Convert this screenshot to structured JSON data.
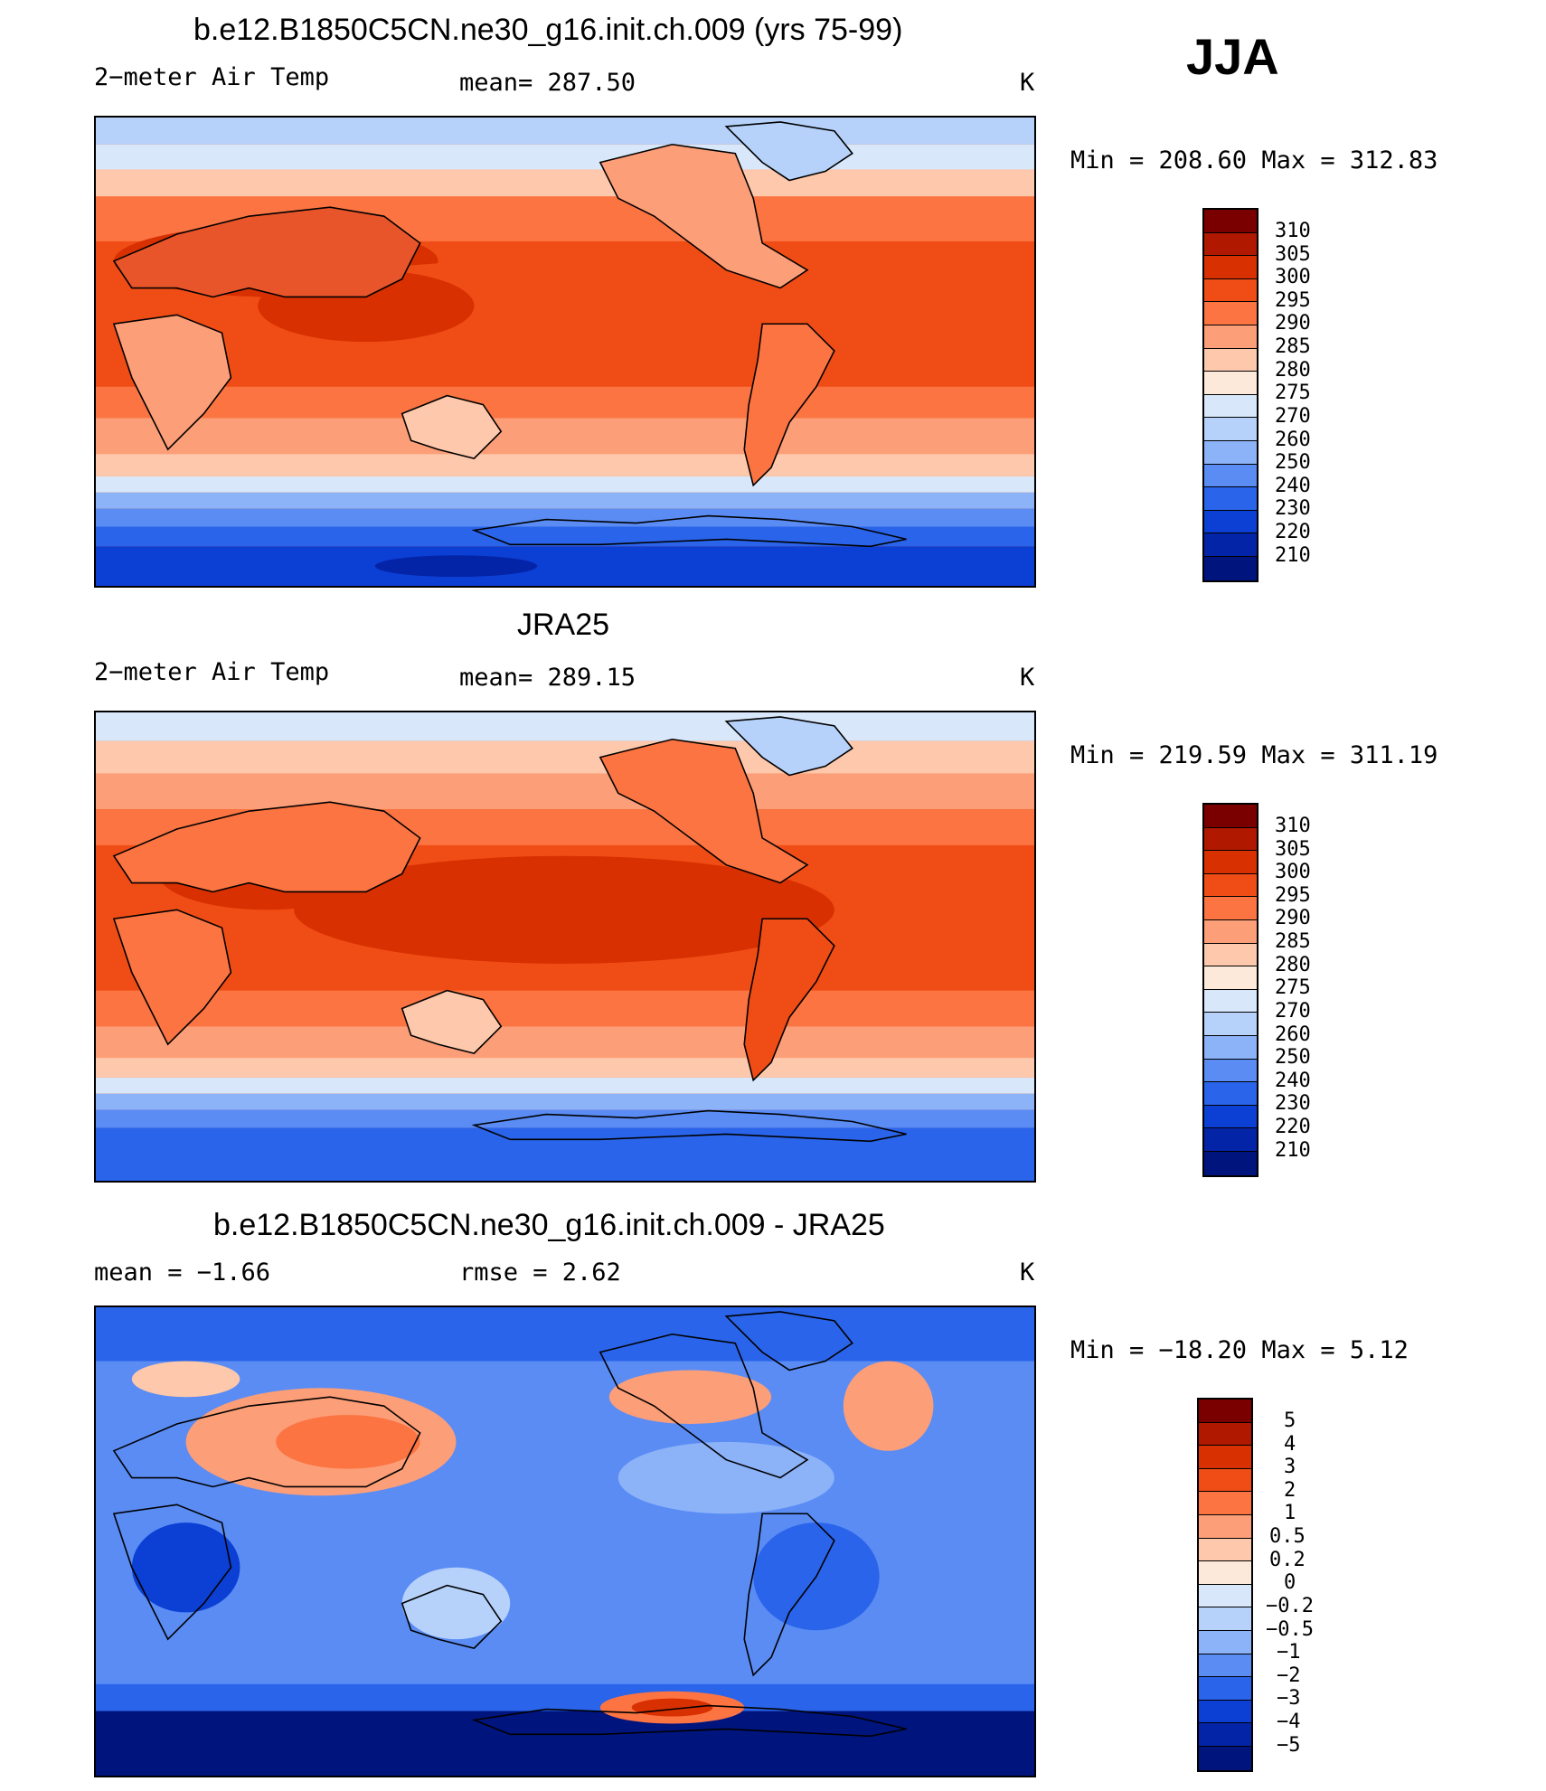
{
  "season": "JJA",
  "panels": [
    {
      "id": "model",
      "title": "b.e12.B1850C5CN.ne30_g16.init.ch.009 (yrs 75-99)",
      "left_label": "2−meter Air Temp",
      "center_label": "mean=  287.50",
      "right_label": "K",
      "minmax": "Min  =  208.60  Max  =  312.83",
      "colorbar_labels": [
        "310",
        "305",
        "300",
        "295",
        "290",
        "285",
        "280",
        "275",
        "270",
        "260",
        "250",
        "240",
        "230",
        "220",
        "210"
      ]
    },
    {
      "id": "obs",
      "title": "JRA25",
      "left_label": "2−meter Air Temp",
      "center_label": "mean=  289.15",
      "right_label": "K",
      "minmax": "Min  =  219.59  Max  =  311.19",
      "colorbar_labels": [
        "310",
        "305",
        "300",
        "295",
        "290",
        "285",
        "280",
        "275",
        "270",
        "260",
        "250",
        "240",
        "230",
        "220",
        "210"
      ]
    },
    {
      "id": "diff",
      "title": "b.e12.B1850C5CN.ne30_g16.init.ch.009 - JRA25",
      "left_label": "mean  =    −1.66",
      "center_label": "rmse  =     2.62",
      "right_label": "K",
      "minmax": "Min  =  −18.20  Max  =     5.12",
      "colorbar_labels": [
        "5",
        "4",
        "3",
        "2",
        "1",
        "0.5",
        "0.2",
        "0",
        "−0.2",
        "−0.5",
        "−1",
        "−2",
        "−3",
        "−4",
        "−5"
      ]
    }
  ],
  "colors": {
    "temp_scale": [
      "#7a0000",
      "#b01800",
      "#d83000",
      "#f04d16",
      "#fb7442",
      "#fc9e78",
      "#fdc8ab",
      "#fde9da",
      "#d8e8fa",
      "#b6d2fb",
      "#8cb2f8",
      "#5a8cf4",
      "#2a64ea",
      "#0c3fd4",
      "#0424a8",
      "#00147e"
    ],
    "diff_scale": [
      "#7a0000",
      "#b01800",
      "#d83000",
      "#f04d16",
      "#fb7442",
      "#fc9e78",
      "#fdc8ab",
      "#fde9da",
      "#d8e8fa",
      "#b6d2fb",
      "#8cb2f8",
      "#5a8cf4",
      "#2a64ea",
      "#0c3fd4",
      "#0424a8",
      "#00147e"
    ]
  }
}
